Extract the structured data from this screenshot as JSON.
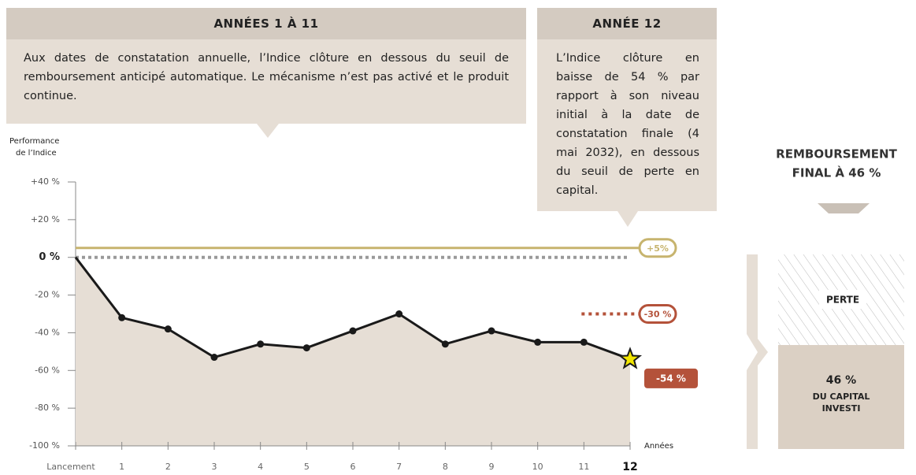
{
  "chart_data": {
    "type": "line",
    "ylabel": [
      "Performance",
      "de l’Indice"
    ],
    "xlabel": "Années",
    "categories": [
      "Lancement",
      "1",
      "2",
      "3",
      "4",
      "5",
      "6",
      "7",
      "8",
      "9",
      "10",
      "11",
      "12"
    ],
    "values": [
      0,
      -32,
      -38,
      -53,
      -46,
      -48,
      -39,
      -30,
      -46,
      -39,
      -45,
      -45,
      -54
    ],
    "value_labels": [
      null,
      null,
      null,
      null,
      null,
      null,
      null,
      null,
      null,
      null,
      null,
      null,
      "-54 %"
    ],
    "color": "#1a1a1a",
    "area_color": "#e6ded5",
    "label_color": "#b4523a",
    "ylim": [
      -100,
      40
    ],
    "yticks": [
      {
        "value": -100,
        "label": "-100 %"
      },
      {
        "value": -80,
        "label": "-80 %"
      },
      {
        "value": -60,
        "label": "-60 %"
      },
      {
        "value": -40,
        "label": "-40 %"
      },
      {
        "value": -20,
        "label": "-20 %"
      },
      {
        "value": 0,
        "label": "0 %"
      },
      {
        "value": 20,
        "label": "+20 %"
      },
      {
        "value": 40,
        "label": "+40 %"
      }
    ],
    "thresholds": [
      {
        "value": 5,
        "label": "+5%",
        "color": "#c7b46e",
        "style": "solid"
      },
      {
        "value": -30,
        "label": "-30 %",
        "color": "#b4523a",
        "style": "dotted"
      }
    ]
  },
  "boxes": [
    {
      "title": "ANNÉES 1 À 11",
      "text": "Aux dates de constatation annuelle, l’Indice clôture en dessous du seuil de remboursement anticipé automatique. Le mécanisme n’est pas activé et le produit continue."
    },
    {
      "title": "ANNÉE 12",
      "text": "L’Indice clôture en baisse de 54 % par rapport à son niveau initial à la date de constatation finale (4 mai 2032), en dessous du seuil de perte en capital."
    }
  ],
  "repayment": {
    "title": [
      "REMBOURSEMENT",
      "FINAL À 46 %"
    ],
    "loss": "PERTE",
    "amount": "46 %",
    "caption": [
      "DU CAPITAL",
      "INVESTI"
    ]
  }
}
